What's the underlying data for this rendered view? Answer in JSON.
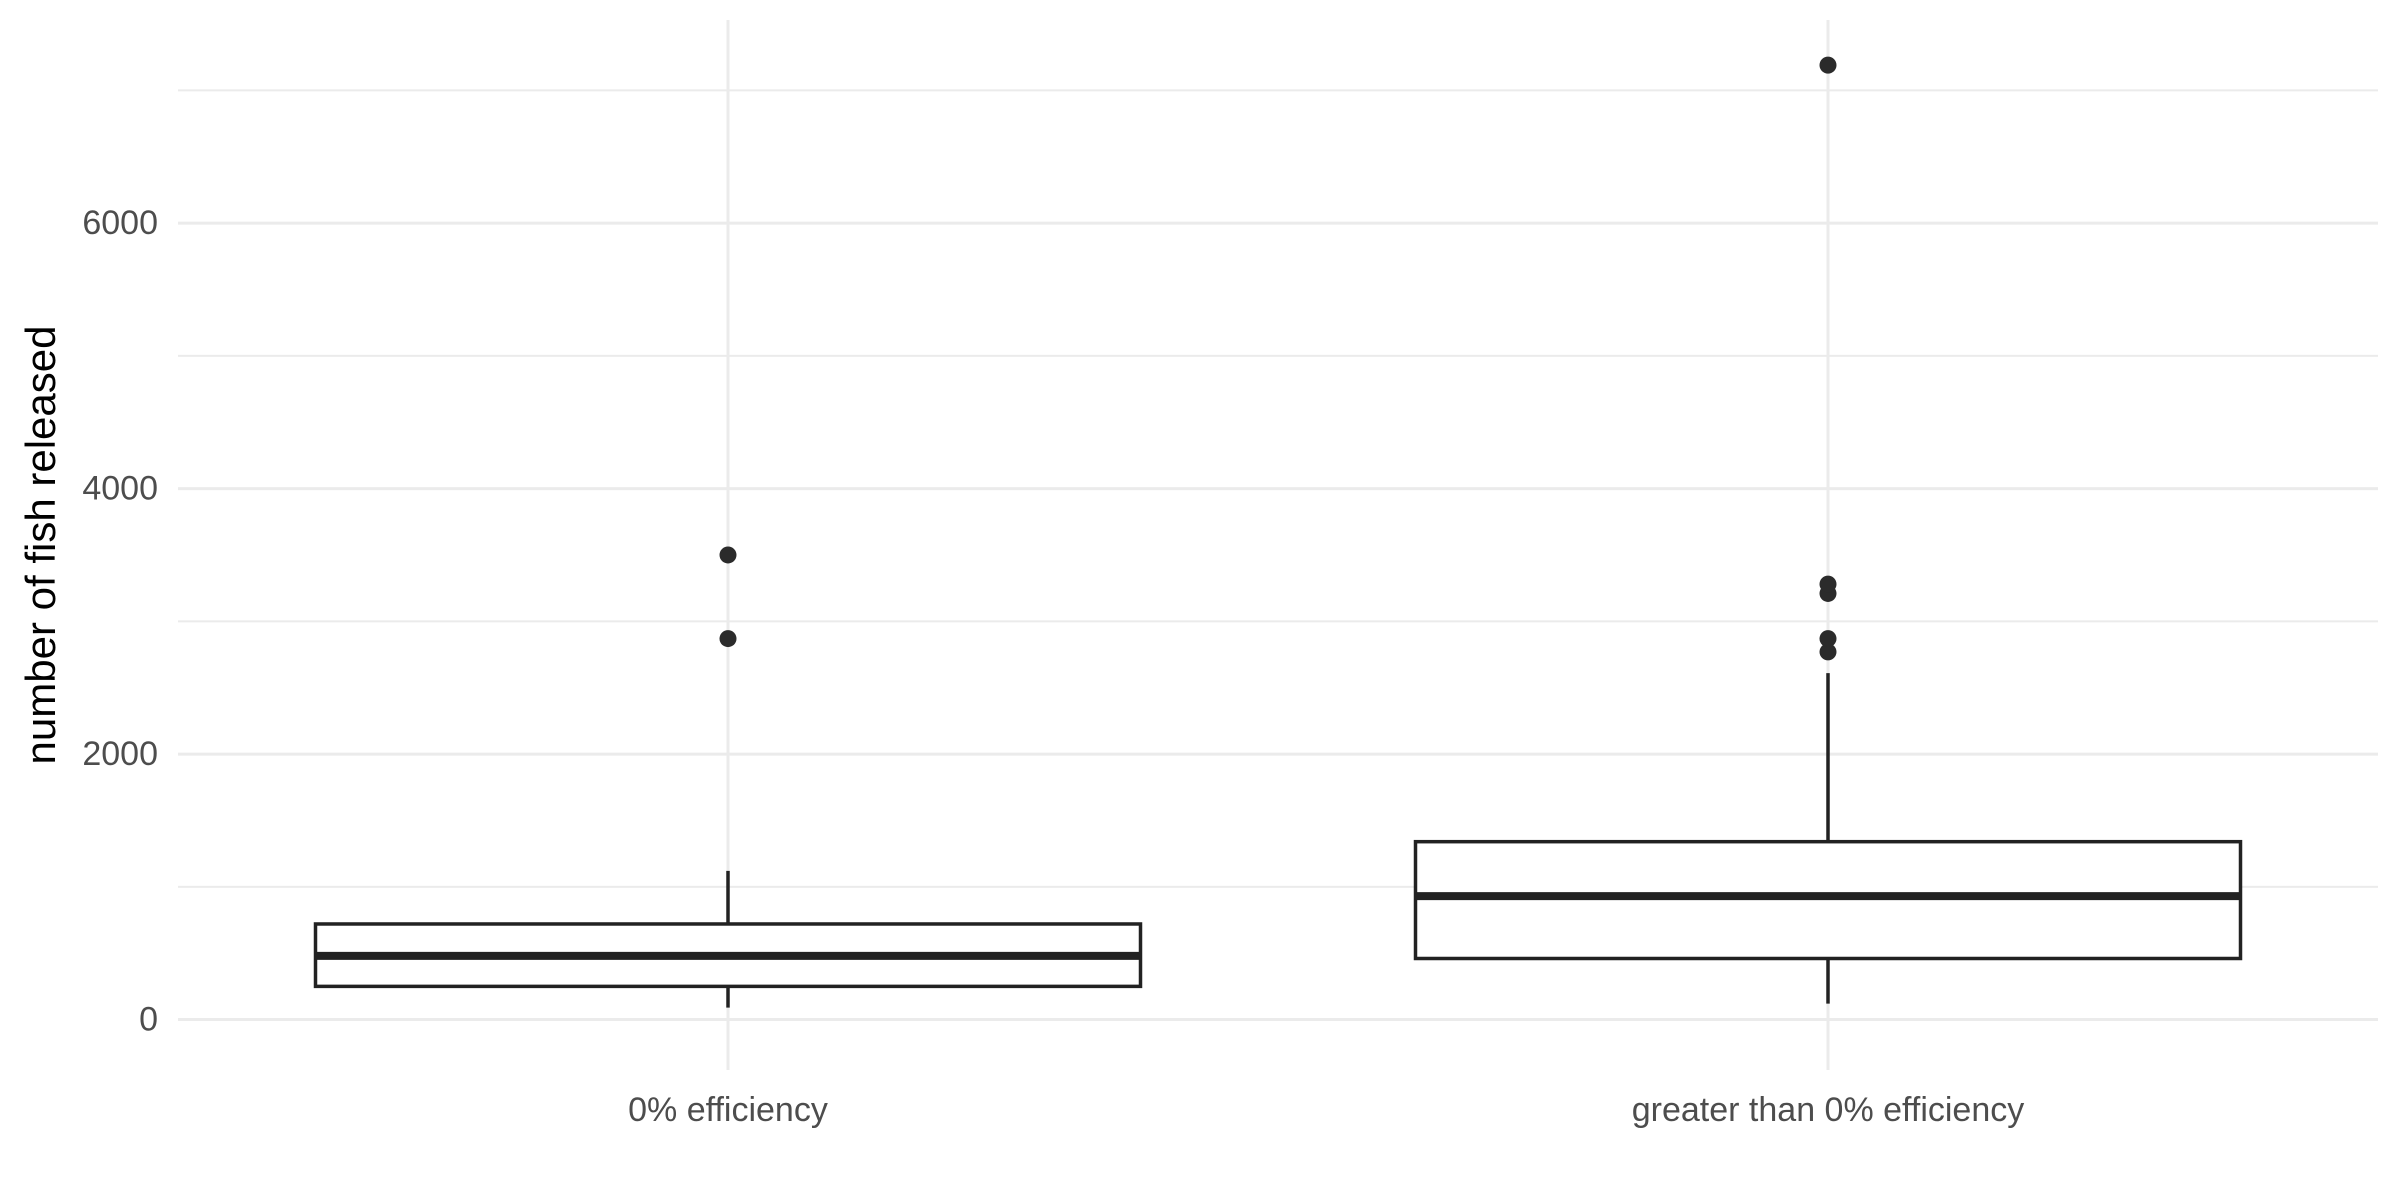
{
  "chart_data": {
    "type": "boxplot",
    "title": "",
    "xlabel": "",
    "ylabel": "number of fish released",
    "ylim": [
      -380,
      7530
    ],
    "y_major_ticks": [
      0,
      2000,
      4000,
      6000
    ],
    "y_tick_labels": [
      "0",
      "2000",
      "4000",
      "6000"
    ],
    "y_minor_ticks": [
      1000,
      3000,
      5000,
      7000
    ],
    "grid": true,
    "legend": "none",
    "categories": [
      "0% efficiency",
      "greater than 0% efficiency"
    ],
    "boxes": [
      {
        "category": "0% efficiency",
        "whisker_low": 90,
        "q1": 250,
        "median": 480,
        "q3": 720,
        "whisker_high": 1120,
        "outliers": [
          2870,
          3500
        ]
      },
      {
        "category": "greater than 0% efficiency",
        "whisker_low": 120,
        "q1": 460,
        "median": 930,
        "q3": 1340,
        "whisker_high": 2610,
        "outliers": [
          2770,
          2870,
          3210,
          3280,
          7190
        ]
      }
    ]
  },
  "colors": {
    "grid": "#ebebeb",
    "box_stroke": "#222222",
    "outlier": "#2b2b2b",
    "tick_label": "#4d4d4d"
  }
}
